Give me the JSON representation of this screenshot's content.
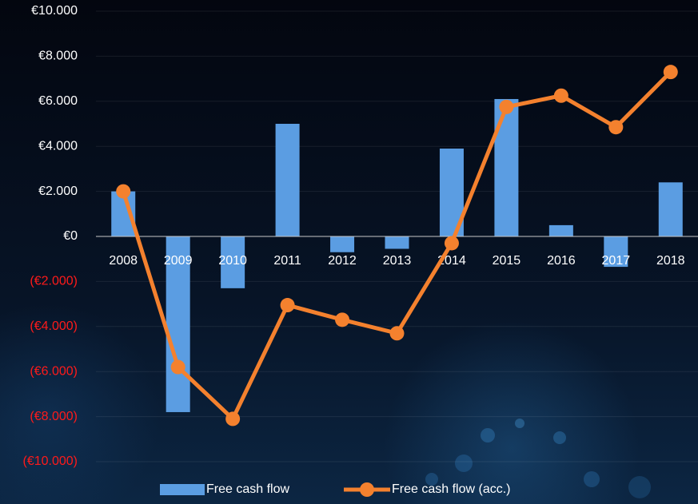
{
  "chart_data": {
    "type": "bar_line",
    "categories": [
      "2008",
      "2009",
      "2010",
      "2011",
      "2012",
      "2013",
      "2014",
      "2015",
      "2016",
      "2017",
      "2018"
    ],
    "series": [
      {
        "name": "Free cash flow",
        "type": "bar",
        "color": "#5b9de2",
        "values": [
          2000,
          -7800,
          -2300,
          5000,
          -700,
          -550,
          3900,
          6100,
          500,
          -1350,
          2400
        ]
      },
      {
        "name": "Free cash flow (acc.)",
        "type": "line",
        "color": "#f4812e",
        "values": [
          2000,
          -5800,
          -8100,
          -3050,
          -3700,
          -4300,
          -300,
          5750,
          6250,
          4850,
          7300
        ]
      }
    ],
    "ylim": [
      -10000,
      10000
    ],
    "yticks": [
      {
        "value": -10000,
        "label": "(€10.000)"
      },
      {
        "value": -8000,
        "label": "(€8.000)"
      },
      {
        "value": -6000,
        "label": "(€6.000)"
      },
      {
        "value": -4000,
        "label": "(€4.000)"
      },
      {
        "value": -2000,
        "label": "(€2.000)"
      },
      {
        "value": 0,
        "label": "€0"
      },
      {
        "value": 2000,
        "label": "€2.000"
      },
      {
        "value": 4000,
        "label": "€4.000"
      },
      {
        "value": 6000,
        "label": "€6.000"
      },
      {
        "value": 8000,
        "label": "€8.000"
      },
      {
        "value": 10000,
        "label": "€10.000"
      }
    ],
    "negative_tick_color": "#ff1a1a",
    "grid": true,
    "legend": "bottom"
  }
}
